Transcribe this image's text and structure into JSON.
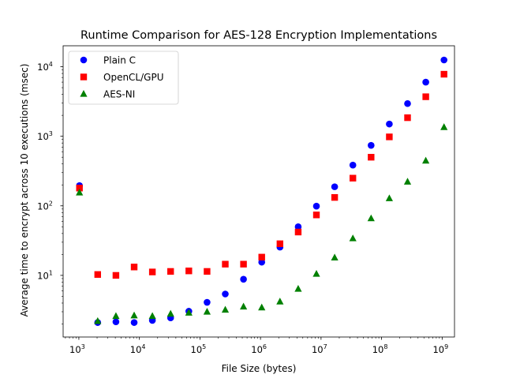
{
  "chart_data": {
    "type": "scatter",
    "title": "Runtime Comparison for AES-128 Encryption Implementations",
    "xlabel": "File Size (bytes)",
    "ylabel": "Average time to encrypt across 10 executions (msec)",
    "x_scale": "log",
    "y_scale": "log",
    "xlim": [
      550,
      1600000000
    ],
    "ylim": [
      1.3,
      20000
    ],
    "x_ticks": [
      {
        "value": 1000,
        "label": "10",
        "exp": "3"
      },
      {
        "value": 10000,
        "label": "10",
        "exp": "4"
      },
      {
        "value": 100000,
        "label": "10",
        "exp": "5"
      },
      {
        "value": 1000000,
        "label": "10",
        "exp": "6"
      },
      {
        "value": 10000000,
        "label": "10",
        "exp": "7"
      },
      {
        "value": 100000000,
        "label": "10",
        "exp": "8"
      },
      {
        "value": 1000000000,
        "label": "10",
        "exp": "9"
      }
    ],
    "y_ticks": [
      {
        "value": 10,
        "label": "10",
        "exp": "1"
      },
      {
        "value": 100,
        "label": "10",
        "exp": "2"
      },
      {
        "value": 1000,
        "label": "10",
        "exp": "3"
      },
      {
        "value": 10000,
        "label": "10",
        "exp": "4"
      }
    ],
    "grid": false,
    "legend_position": "top-left",
    "x": [
      1024,
      2048,
      4096,
      8192,
      16384,
      32768,
      65536,
      131072,
      262144,
      524288,
      1048576,
      2097152,
      4194304,
      8388608,
      16777216,
      33554432,
      67108864,
      134217728,
      268435456,
      536870912,
      1073741824
    ],
    "series": [
      {
        "name": "Plain C",
        "marker": "circle",
        "color": "#0000ff",
        "values": [
          195,
          2.1,
          2.15,
          2.1,
          2.25,
          2.45,
          3.05,
          4.1,
          5.4,
          8.8,
          15.5,
          25.5,
          50,
          99,
          188,
          385,
          740,
          1500,
          2950,
          6000,
          12500
        ]
      },
      {
        "name": "OpenCL/GPU",
        "marker": "square",
        "color": "#ff0000",
        "values": [
          180,
          10.3,
          10,
          13.2,
          11.2,
          11.4,
          11.6,
          11.4,
          14.5,
          14.5,
          18.3,
          28.5,
          42,
          74,
          132,
          250,
          500,
          980,
          1850,
          3700,
          7800
        ]
      },
      {
        "name": "AES-NI",
        "marker": "triangle",
        "color": "#008000",
        "values": [
          155,
          2.2,
          2.6,
          2.65,
          2.6,
          2.8,
          2.9,
          3.0,
          3.2,
          3.55,
          3.45,
          4.2,
          6.4,
          10.5,
          18,
          34,
          66,
          128,
          222,
          445,
          1350
        ]
      }
    ]
  }
}
